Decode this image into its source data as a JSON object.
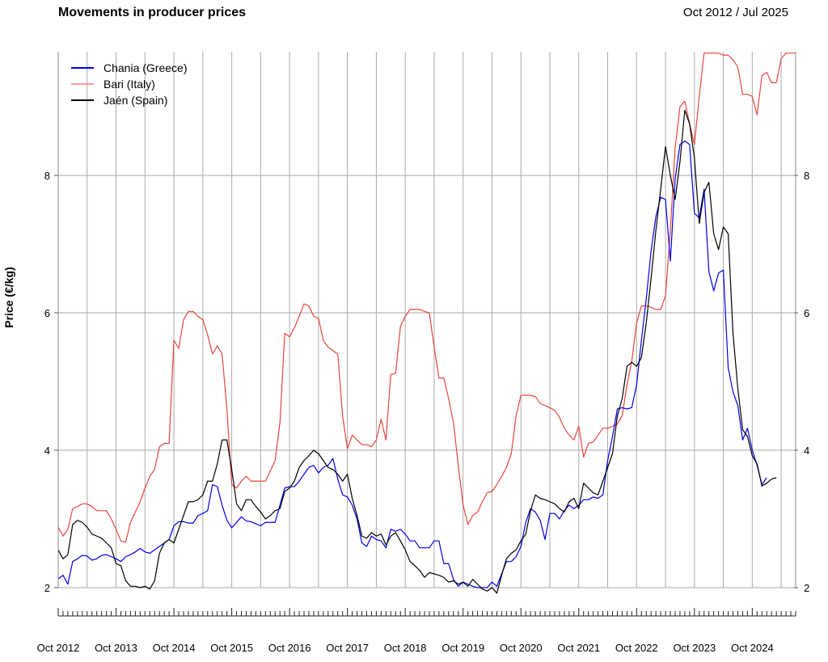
{
  "chart_data": {
    "type": "line",
    "title": "Movements in producer prices",
    "period": "Oct 2012 / Jul 2025",
    "ylabel": "Price (€/kg)",
    "ylim": [
      2,
      9.8
    ],
    "yticks": [
      2,
      4,
      6,
      8
    ],
    "grid": true,
    "legend_position": "top-left",
    "start_month": "Oct 2012",
    "x_labels": [
      "Oct 2012",
      "Oct 2013",
      "Oct 2014",
      "Oct 2015",
      "Oct 2016",
      "Oct 2017",
      "Oct 2018",
      "Oct 2019",
      "Oct 2020",
      "Oct 2021",
      "Oct 2022",
      "Oct 2023",
      "Oct 2024"
    ],
    "series": [
      {
        "name": "Chania (Greece)",
        "color": "#0000ee",
        "values": [
          2.13,
          2.18,
          2.05,
          2.38,
          2.42,
          2.47,
          2.46,
          2.4,
          2.42,
          2.47,
          2.48,
          2.45,
          2.42,
          2.38,
          2.45,
          2.48,
          2.52,
          2.57,
          2.52,
          2.5,
          2.55,
          2.6,
          2.65,
          2.7,
          2.9,
          2.96,
          2.96,
          2.94,
          2.94,
          3.05,
          3.08,
          3.12,
          3.5,
          3.47,
          3.2,
          2.98,
          2.87,
          2.95,
          3.03,
          2.97,
          2.96,
          2.93,
          2.9,
          2.95,
          2.95,
          2.95,
          3.2,
          3.45,
          3.47,
          3.47,
          3.55,
          3.65,
          3.75,
          3.78,
          3.67,
          3.75,
          3.78,
          3.88,
          3.58,
          3.35,
          3.32,
          3.2,
          3.0,
          2.65,
          2.6,
          2.75,
          2.7,
          2.68,
          2.58,
          2.85,
          2.82,
          2.85,
          2.78,
          2.68,
          2.68,
          2.58,
          2.58,
          2.58,
          2.68,
          2.68,
          2.35,
          2.35,
          2.12,
          2.02,
          2.08,
          2.05,
          2.02,
          2.0,
          2.0,
          2.0,
          2.08,
          2.02,
          2.2,
          2.38,
          2.38,
          2.45,
          2.6,
          2.95,
          3.15,
          3.1,
          2.98,
          2.7,
          3.08,
          3.08,
          3.0,
          3.12,
          3.2,
          3.15,
          3.2,
          3.28,
          3.28,
          3.32,
          3.3,
          3.35,
          3.85,
          4.2,
          4.6,
          4.62,
          4.6,
          4.62,
          4.95,
          5.6,
          6.2,
          6.9,
          7.4,
          7.68,
          7.65,
          6.75,
          7.95,
          8.45,
          8.5,
          8.45,
          7.45,
          7.38,
          7.8,
          6.6,
          6.32,
          6.58,
          6.62,
          5.2,
          4.85,
          4.65,
          4.15,
          4.32,
          4.0,
          3.78,
          3.5,
          3.6
        ]
      },
      {
        "name": "Bari (Italy)",
        "color": "#e8453c",
        "values": [
          2.88,
          2.75,
          2.85,
          3.15,
          3.18,
          3.22,
          3.22,
          3.18,
          3.12,
          3.12,
          3.12,
          3.0,
          2.85,
          2.68,
          2.66,
          2.95,
          3.1,
          3.25,
          3.45,
          3.62,
          3.72,
          4.05,
          4.1,
          4.1,
          5.6,
          5.48,
          5.9,
          6.02,
          6.02,
          5.95,
          5.9,
          5.68,
          5.4,
          5.52,
          5.4,
          4.6,
          3.5,
          3.45,
          3.55,
          3.62,
          3.55,
          3.55,
          3.55,
          3.55,
          3.7,
          3.85,
          4.4,
          5.7,
          5.65,
          5.78,
          5.95,
          6.13,
          6.1,
          5.95,
          5.92,
          5.6,
          5.5,
          5.45,
          5.4,
          4.5,
          4.02,
          4.22,
          4.15,
          4.08,
          4.08,
          4.05,
          4.15,
          4.45,
          4.15,
          5.1,
          5.12,
          5.8,
          5.95,
          6.05,
          6.05,
          6.05,
          6.02,
          6.0,
          5.5,
          5.05,
          5.05,
          4.75,
          4.4,
          3.78,
          3.2,
          2.92,
          3.05,
          3.1,
          3.25,
          3.38,
          3.4,
          3.5,
          3.62,
          3.75,
          3.95,
          4.5,
          4.8,
          4.8,
          4.8,
          4.78,
          4.68,
          4.65,
          4.62,
          4.58,
          4.48,
          4.32,
          4.22,
          4.15,
          4.35,
          3.9,
          4.1,
          4.12,
          4.22,
          4.32,
          4.32,
          4.35,
          4.38,
          4.5,
          4.95,
          5.3,
          5.85,
          6.1,
          6.1,
          6.08,
          6.05,
          6.05,
          6.25,
          7.2,
          8.4,
          9.0,
          9.08,
          8.75,
          8.45,
          9.15,
          9.78,
          9.78,
          9.78,
          9.78,
          9.75,
          9.75,
          9.68,
          9.58,
          9.18,
          9.18,
          9.15,
          8.88,
          9.45,
          9.5,
          9.35,
          9.35,
          9.7,
          9.78,
          9.78,
          9.78
        ]
      },
      {
        "name": "Jaén (Spain)",
        "color": "#000000",
        "values": [
          2.55,
          2.42,
          2.48,
          2.92,
          2.98,
          2.95,
          2.88,
          2.78,
          2.75,
          2.72,
          2.65,
          2.58,
          2.35,
          2.32,
          2.1,
          2.02,
          2.02,
          2.0,
          2.02,
          1.98,
          2.1,
          2.5,
          2.65,
          2.7,
          2.65,
          2.85,
          3.05,
          3.25,
          3.25,
          3.28,
          3.35,
          3.55,
          3.55,
          3.8,
          4.15,
          4.15,
          3.72,
          3.22,
          3.12,
          3.28,
          3.28,
          3.18,
          3.1,
          3.0,
          3.05,
          3.12,
          3.15,
          3.4,
          3.45,
          3.55,
          3.75,
          3.85,
          3.92,
          4.0,
          3.95,
          3.85,
          3.75,
          3.72,
          3.65,
          3.55,
          3.65,
          3.3,
          3.05,
          2.75,
          2.72,
          2.8,
          2.75,
          2.78,
          2.62,
          2.75,
          2.8,
          2.68,
          2.55,
          2.38,
          2.32,
          2.25,
          2.15,
          2.22,
          2.2,
          2.18,
          2.15,
          2.08,
          2.1,
          2.05,
          2.08,
          2.02,
          2.12,
          2.05,
          1.98,
          1.95,
          2.0,
          1.92,
          2.18,
          2.42,
          2.5,
          2.55,
          2.68,
          2.78,
          3.12,
          3.35,
          3.3,
          3.28,
          3.25,
          3.22,
          3.15,
          3.1,
          3.25,
          3.3,
          3.15,
          3.52,
          3.45,
          3.38,
          3.35,
          3.55,
          3.75,
          3.95,
          4.5,
          4.75,
          5.22,
          5.28,
          5.22,
          5.35,
          5.85,
          6.5,
          7.2,
          7.8,
          8.42,
          8.0,
          7.65,
          8.2,
          8.95,
          8.75,
          8.25,
          7.3,
          7.75,
          7.9,
          7.15,
          6.92,
          7.25,
          7.15,
          5.7,
          4.9,
          4.3,
          4.2,
          3.92,
          3.8,
          3.48,
          3.52,
          3.58,
          3.6
        ]
      }
    ]
  }
}
